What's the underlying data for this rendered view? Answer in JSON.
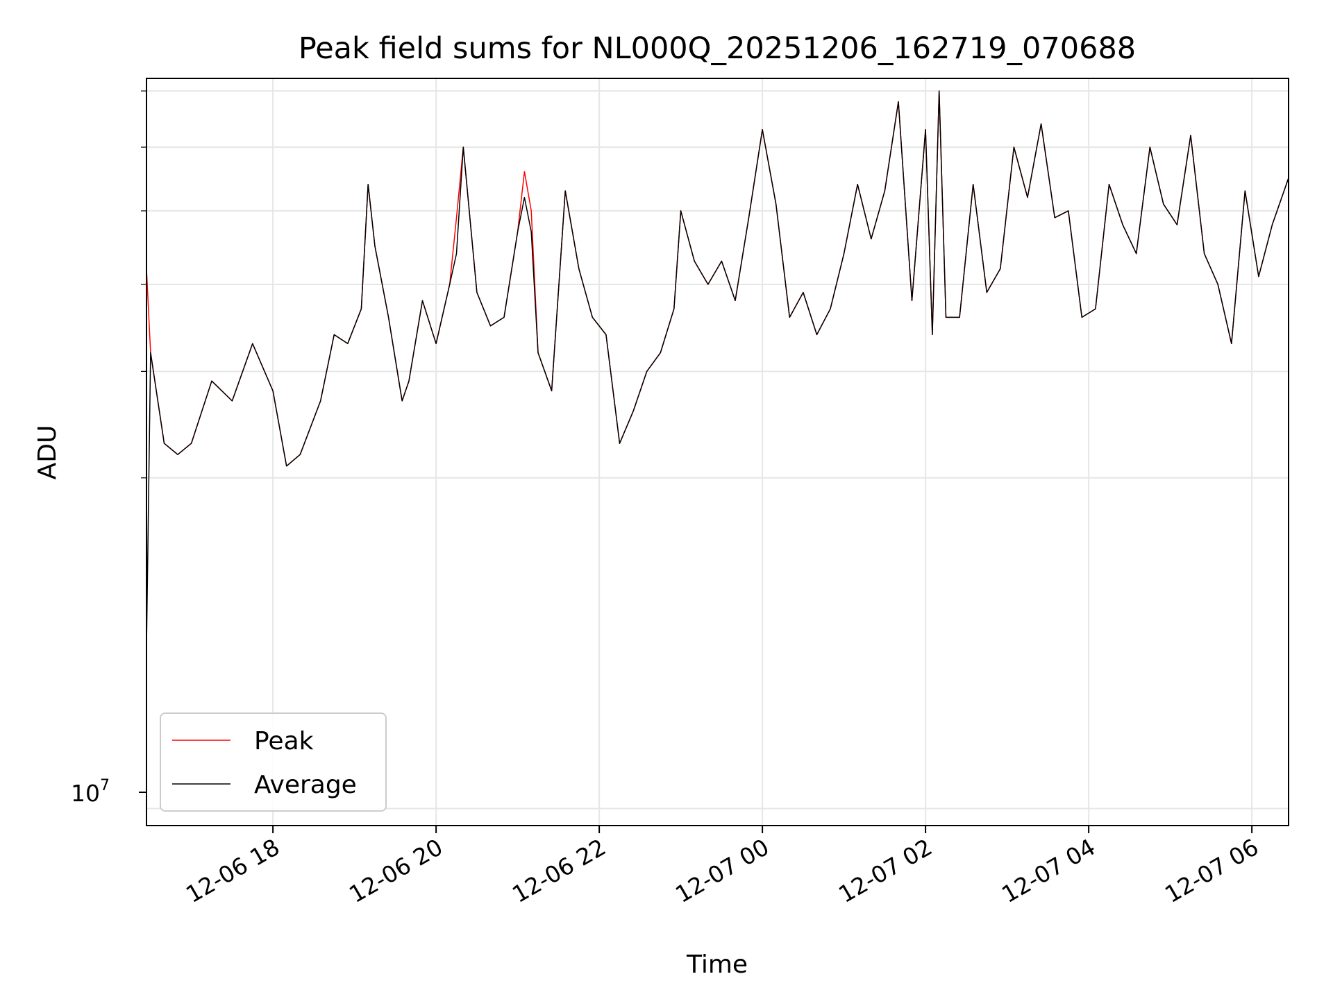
{
  "chart_data": {
    "type": "line",
    "title": "Peak field sums for NL000Q_20251206_162719_070688",
    "xlabel": "Time",
    "ylabel": "ADU",
    "y_scale": "log",
    "grid": true,
    "legend_position": "lower-left",
    "xlim": [
      "2025-12-06 16:27",
      "2025-12-07 06:27"
    ],
    "ylim": [
      9650000.0,
      46200000.0
    ],
    "x_ticks": [
      "12-06 18",
      "12-06 20",
      "12-06 22",
      "12-07 00",
      "12-07 02",
      "12-07 04",
      "12-07 06"
    ],
    "y_ticks": [
      {
        "value": 10000000.0,
        "base": "10",
        "exponent": "7"
      }
    ],
    "x": [
      "2025-12-06 16:27",
      "2025-12-06 16:30",
      "2025-12-06 16:40",
      "2025-12-06 16:50",
      "2025-12-06 17:00",
      "2025-12-06 17:15",
      "2025-12-06 17:30",
      "2025-12-06 17:45",
      "2025-12-06 18:00",
      "2025-12-06 18:10",
      "2025-12-06 18:20",
      "2025-12-06 18:35",
      "2025-12-06 18:45",
      "2025-12-06 18:55",
      "2025-12-06 19:05",
      "2025-12-06 19:10",
      "2025-12-06 19:15",
      "2025-12-06 19:25",
      "2025-12-06 19:35",
      "2025-12-06 19:40",
      "2025-12-06 19:50",
      "2025-12-06 20:00",
      "2025-12-06 20:10",
      "2025-12-06 20:15",
      "2025-12-06 20:20",
      "2025-12-06 20:30",
      "2025-12-06 20:40",
      "2025-12-06 20:50",
      "2025-12-06 21:00",
      "2025-12-06 21:05",
      "2025-12-06 21:10",
      "2025-12-06 21:15",
      "2025-12-06 21:25",
      "2025-12-06 21:35",
      "2025-12-06 21:45",
      "2025-12-06 21:55",
      "2025-12-06 22:05",
      "2025-12-06 22:15",
      "2025-12-06 22:25",
      "2025-12-06 22:35",
      "2025-12-06 22:45",
      "2025-12-06 22:55",
      "2025-12-06 23:00",
      "2025-12-06 23:10",
      "2025-12-06 23:20",
      "2025-12-06 23:30",
      "2025-12-06 23:40",
      "2025-12-06 23:50",
      "2025-12-07 00:00",
      "2025-12-07 00:10",
      "2025-12-07 00:20",
      "2025-12-07 00:30",
      "2025-12-07 00:40",
      "2025-12-07 00:50",
      "2025-12-07 01:00",
      "2025-12-07 01:10",
      "2025-12-07 01:20",
      "2025-12-07 01:30",
      "2025-12-07 01:40",
      "2025-12-07 01:50",
      "2025-12-07 02:00",
      "2025-12-07 02:05",
      "2025-12-07 02:10",
      "2025-12-07 02:15",
      "2025-12-07 02:25",
      "2025-12-07 02:35",
      "2025-12-07 02:45",
      "2025-12-07 02:55",
      "2025-12-07 03:05",
      "2025-12-07 03:15",
      "2025-12-07 03:25",
      "2025-12-07 03:35",
      "2025-12-07 03:45",
      "2025-12-07 03:55",
      "2025-12-07 04:05",
      "2025-12-07 04:15",
      "2025-12-07 04:25",
      "2025-12-07 04:35",
      "2025-12-07 04:45",
      "2025-12-07 04:55",
      "2025-12-07 05:05",
      "2025-12-07 05:15",
      "2025-12-07 05:25",
      "2025-12-07 05:35",
      "2025-12-07 05:45",
      "2025-12-07 05:55",
      "2025-12-07 06:05",
      "2025-12-07 06:15",
      "2025-12-07 06:27"
    ],
    "series": [
      {
        "name": "Peak",
        "color": "#ff0000",
        "values": [
          31000000,
          26000000,
          21500000,
          21000000,
          21500000,
          24500000,
          23500000,
          26500000,
          24000000,
          20500000,
          21000000,
          23500000,
          27000000,
          26500000,
          28500000,
          37000000,
          32500000,
          28000000,
          23500000,
          24500000,
          29000000,
          26500000,
          30000000,
          34500000,
          40000000,
          29500000,
          27500000,
          28000000,
          33500000,
          38000000,
          35000000,
          26000000,
          24000000,
          36500000,
          31000000,
          28000000,
          27000000,
          21500000,
          23000000,
          25000000,
          26000000,
          28500000,
          35000000,
          31500000,
          30000000,
          31500000,
          29000000,
          34500000,
          41500000,
          35500000,
          28000000,
          29500000,
          27000000,
          28500000,
          32000000,
          37000000,
          33000000,
          36500000,
          44000000,
          29000000,
          41500000,
          27000000,
          45000000,
          28000000,
          28000000,
          37000000,
          29500000,
          31000000,
          40000000,
          36000000,
          42000000,
          34500000,
          35000000,
          28000000,
          28500000,
          37000000,
          34000000,
          32000000,
          40000000,
          35500000,
          34000000,
          41000000,
          32000000,
          30000000,
          26500000,
          36500000,
          30500000,
          34000000,
          37500000
        ]
      },
      {
        "name": "Average",
        "color": "#000000",
        "values": [
          14000000,
          26000000,
          21500000,
          21000000,
          21500000,
          24500000,
          23500000,
          26500000,
          24000000,
          20500000,
          21000000,
          23500000,
          27000000,
          26500000,
          28500000,
          37000000,
          32500000,
          28000000,
          23500000,
          24500000,
          29000000,
          26500000,
          30000000,
          32000000,
          40000000,
          29500000,
          27500000,
          28000000,
          33500000,
          36000000,
          33500000,
          26000000,
          24000000,
          36500000,
          31000000,
          28000000,
          27000000,
          21500000,
          23000000,
          25000000,
          26000000,
          28500000,
          35000000,
          31500000,
          30000000,
          31500000,
          29000000,
          34500000,
          41500000,
          35500000,
          28000000,
          29500000,
          27000000,
          28500000,
          32000000,
          37000000,
          33000000,
          36500000,
          44000000,
          29000000,
          41500000,
          27000000,
          45000000,
          28000000,
          28000000,
          37000000,
          29500000,
          31000000,
          40000000,
          36000000,
          42000000,
          34500000,
          35000000,
          28000000,
          28500000,
          37000000,
          34000000,
          32000000,
          40000000,
          35500000,
          34000000,
          41000000,
          32000000,
          30000000,
          26500000,
          36500000,
          30500000,
          34000000,
          37500000
        ]
      }
    ]
  }
}
